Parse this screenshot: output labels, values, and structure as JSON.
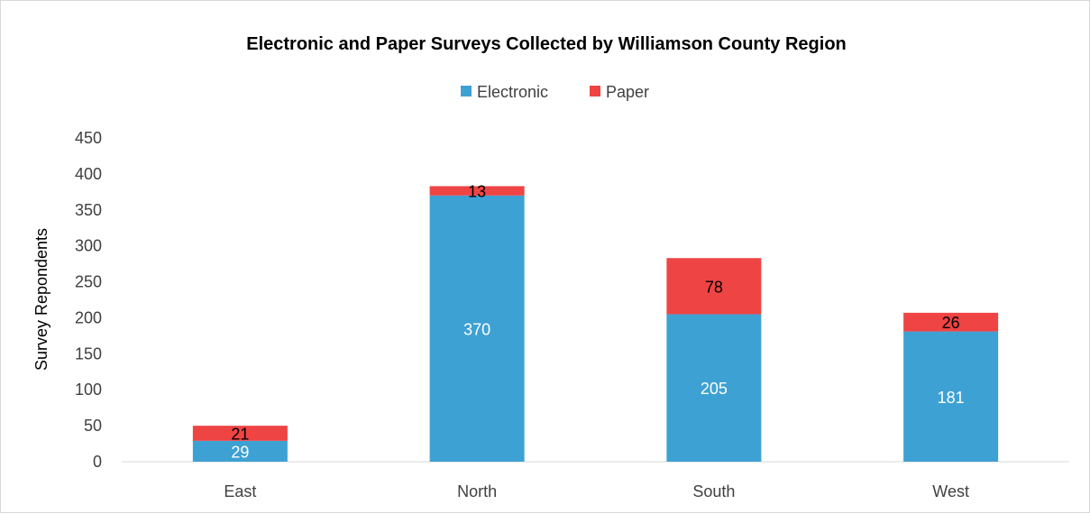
{
  "chart_data": {
    "type": "bar",
    "stacked": true,
    "title": "Electronic and Paper Surveys Collected by Williamson County Region",
    "xlabel": "",
    "ylabel": "Survey Repondents",
    "categories": [
      "East",
      "North",
      "South",
      "West"
    ],
    "series": [
      {
        "name": "Electronic",
        "color": "#3ea1d3",
        "values": [
          29,
          370,
          205,
          181
        ],
        "label_color": "#ffffff"
      },
      {
        "name": "Paper",
        "color": "#ef4444",
        "values": [
          21,
          13,
          78,
          26
        ],
        "label_color": "#000000"
      }
    ],
    "ylim": [
      0,
      450
    ],
    "yticks": [
      "0",
      "50",
      "100",
      "150",
      "200",
      "250",
      "300",
      "350",
      "400",
      "450"
    ],
    "grid": false,
    "legend": "top"
  }
}
